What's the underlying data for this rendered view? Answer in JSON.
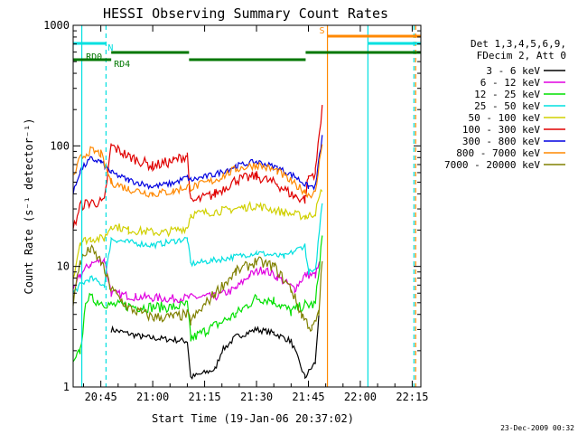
{
  "chart_data": {
    "type": "line",
    "title": "HESSI Observing Summary Count Rates",
    "xlabel": "Start Time (19-Jan-06 20:37:02)",
    "ylabel": "Count Rate (s⁻¹ detector⁻¹)",
    "ylog": true,
    "ylim": [
      1,
      1000
    ],
    "xlim_minutes": [
      37.0,
      137.5
    ],
    "x_ticks": [
      {
        "min": 45,
        "label": "20:45"
      },
      {
        "min": 60,
        "label": "21:00"
      },
      {
        "min": 75,
        "label": "21:15"
      },
      {
        "min": 90,
        "label": "21:30"
      },
      {
        "min": 105,
        "label": "21:45"
      },
      {
        "min": 120,
        "label": "22:00"
      },
      {
        "min": 135,
        "label": "22:15"
      }
    ],
    "y_ticks": [
      {
        "value": 1,
        "label": "1"
      },
      {
        "value": 10,
        "label": "10"
      },
      {
        "value": 100,
        "label": "100"
      },
      {
        "value": 1000,
        "label": "1000"
      }
    ],
    "legend_header": [
      "Det 1,3,4,5,6,9,",
      "FDecim 2, Att 0"
    ],
    "legend_placement": "right",
    "series": [
      {
        "name": "3 - 6 keV",
        "color": "#000000",
        "x": [
          37,
          45,
          48,
          57,
          70,
          71,
          78,
          80,
          84,
          90,
          95,
          100,
          104,
          107,
          108,
          109.5
        ],
        "y": [
          null,
          null,
          3.0,
          2.6,
          2.4,
          1.2,
          1.4,
          2.0,
          2.6,
          3.0,
          2.8,
          2.4,
          1.2,
          1.6,
          4.0,
          null
        ]
      },
      {
        "name": "6 - 12 keV",
        "color": "#e000e0",
        "x": [
          37,
          39,
          42,
          46,
          48,
          55,
          65,
          75,
          78,
          84,
          88,
          92,
          96,
          101,
          104,
          107,
          108.5,
          109.5
        ],
        "y": [
          6.0,
          8.5,
          10.5,
          11.5,
          6.0,
          5.6,
          5.4,
          5.6,
          5.6,
          6.5,
          8.5,
          9.5,
          8.2,
          6.5,
          8.5,
          8.5,
          11.0,
          null
        ]
      },
      {
        "name": "12 - 25 keV",
        "color": "#00e000",
        "x": [
          37,
          39,
          41,
          44,
          48,
          57,
          66,
          70,
          71,
          76,
          84,
          90,
          95,
          100,
          104,
          107,
          109,
          109.5
        ],
        "y": [
          1.5,
          2.0,
          5.5,
          5.2,
          4.8,
          4.6,
          4.6,
          4.8,
          2.5,
          3.0,
          4.0,
          5.5,
          5.2,
          4.2,
          4.8,
          4.8,
          18.0,
          null
        ]
      },
      {
        "name": "25 - 50 keV",
        "color": "#00e0e0",
        "x": [
          37,
          39,
          42,
          46,
          48,
          52,
          60,
          70,
          71,
          80,
          90,
          98,
          104,
          105,
          107,
          109,
          109.5
        ],
        "y": [
          6.0,
          7.0,
          8.0,
          7.0,
          17.0,
          16.0,
          15.0,
          17.0,
          10.5,
          11.5,
          13.0,
          12.0,
          15.0,
          9.0,
          9.0,
          35.0,
          null
        ]
      },
      {
        "name": "50 - 100 keV",
        "color": "#d0d000",
        "x": [
          37,
          39,
          42,
          46,
          48,
          53,
          63,
          70,
          71,
          80,
          90,
          98,
          104,
          105,
          107,
          109,
          109.5
        ],
        "y": [
          8.0,
          16.0,
          17.0,
          17.0,
          22.0,
          20.0,
          19.0,
          21.0,
          27.0,
          29.0,
          32.0,
          28.0,
          26.0,
          26.0,
          28.0,
          45.0,
          null
        ]
      },
      {
        "name": "100 - 300 keV",
        "color": "#e00000",
        "x": [
          37,
          39,
          42,
          46,
          48,
          53,
          60,
          66,
          70,
          71,
          78,
          84,
          90,
          96,
          101,
          104,
          105,
          107,
          109,
          109.5
        ],
        "y": [
          20.0,
          32.0,
          34.0,
          34.0,
          100.0,
          82.0,
          68.0,
          75.0,
          84.0,
          34.0,
          40.0,
          52.0,
          56.0,
          48.0,
          38.0,
          36.0,
          55.0,
          60.0,
          220.0,
          null
        ]
      },
      {
        "name": "300 - 800 keV",
        "color": "#0000e0",
        "x": [
          37,
          39,
          42,
          45,
          48,
          53,
          60,
          66,
          70,
          71,
          78,
          84,
          90,
          96,
          101,
          104,
          105,
          107,
          109,
          109.5
        ],
        "y": [
          40.0,
          62.0,
          78.0,
          74.0,
          60.0,
          52.0,
          46.0,
          49.0,
          55.0,
          52.0,
          58.0,
          68.0,
          74.0,
          66.0,
          56.0,
          48.0,
          46.0,
          46.0,
          120.0,
          null
        ]
      },
      {
        "name": "800 - 7000 keV",
        "color": "#ff8800",
        "x": [
          37,
          39,
          42,
          45,
          48,
          53,
          60,
          66,
          70,
          71,
          78,
          84,
          90,
          96,
          101,
          104,
          105,
          107,
          109,
          109.5
        ],
        "y": [
          55.0,
          78.0,
          92.0,
          86.0,
          50.0,
          44.0,
          40.0,
          42.0,
          46.0,
          45.0,
          52.0,
          64.0,
          70.0,
          62.0,
          48.0,
          42.0,
          40.0,
          40.0,
          110.0,
          null
        ]
      },
      {
        "name": "7000 - 20000 keV",
        "color": "#808000",
        "x": [
          37,
          39,
          42,
          45,
          48,
          53,
          60,
          66,
          70,
          71,
          78,
          84,
          90,
          95,
          100,
          103,
          106,
          108,
          109,
          109.5
        ],
        "y": [
          5.0,
          11.0,
          14.0,
          11.0,
          6.5,
          4.5,
          3.8,
          3.8,
          4.0,
          3.5,
          6.0,
          9.0,
          11.0,
          10.0,
          6.5,
          4.0,
          3.0,
          4.0,
          12.0,
          null
        ]
      }
    ],
    "markers": [
      {
        "min": 39.5,
        "kind": "solid",
        "color": "#00e0e0"
      },
      {
        "min": 46.5,
        "kind": "dashed",
        "color": "#00e0e0"
      },
      {
        "min": 110.5,
        "kind": "solid",
        "color": "#ff8800"
      },
      {
        "min": 122.2,
        "kind": "solid",
        "color": "#00e0e0"
      },
      {
        "min": 135.5,
        "kind": "dashed",
        "color": "#00e0e0"
      },
      {
        "min": 136.0,
        "kind": "dashed",
        "color": "#ff8800"
      }
    ],
    "state_bars": [
      {
        "label": "N",
        "color": "#00e0e0",
        "segments": [
          [
            37,
            46.5
          ],
          [
            122.2,
            137.5
          ]
        ],
        "level": 1
      },
      {
        "label": "S",
        "color": "#ff8800",
        "segments": [
          [
            110.5,
            137.5
          ]
        ],
        "level": 0
      },
      {
        "label": "RD0",
        "color": "#007700",
        "segments": [
          [
            48,
            70.5
          ],
          [
            104.2,
            137.5
          ]
        ],
        "level": 2
      },
      {
        "label": "RD4",
        "color": "#007700",
        "segments": [
          [
            37,
            48
          ],
          [
            70.5,
            104.2
          ]
        ],
        "level": 3
      }
    ],
    "footer_date": "23-Dec-2009 00:32"
  }
}
